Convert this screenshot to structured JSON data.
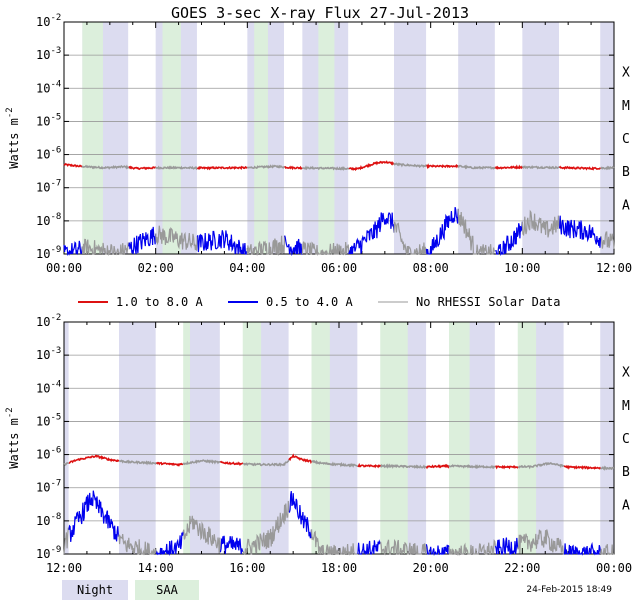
{
  "title": "GOES 3-sec X-ray Flux   27-Jul-2013",
  "colors": {
    "long_channel": "#dd1111",
    "short_channel": "#0000ee",
    "no_rhessi": "#999999",
    "night": "#dcdcf0",
    "saa": "#dcefdc",
    "grid": "#999999"
  },
  "y_axis": {
    "label_main": "Watts m",
    "label_sup": "-2",
    "ticks": [
      {
        "base": "10",
        "exp": "-2"
      },
      {
        "base": "10",
        "exp": "-3"
      },
      {
        "base": "10",
        "exp": "-4"
      },
      {
        "base": "10",
        "exp": "-5"
      },
      {
        "base": "10",
        "exp": "-6"
      },
      {
        "base": "10",
        "exp": "-7"
      },
      {
        "base": "10",
        "exp": "-8"
      },
      {
        "base": "10",
        "exp": "-9"
      }
    ]
  },
  "flare_classes": [
    "X",
    "M",
    "C",
    "B",
    "A"
  ],
  "legend": {
    "long": "1.0 to 8.0 A",
    "short": "0.5 to 4.0 A",
    "no_rhessi": "No RHESSI Solar Data",
    "night": "Night",
    "saa": "SAA"
  },
  "timestamp": "24-Feb-2015 18:49",
  "chart_data": [
    {
      "type": "line",
      "panel": "top",
      "x_unit": "hours UT",
      "xlim": [
        0,
        12
      ],
      "x_ticks": [
        "00:00",
        "02:00",
        "04:00",
        "06:00",
        "08:00",
        "10:00",
        "12:00"
      ],
      "yscale": "log",
      "ylim": [
        1e-09,
        0.01
      ],
      "ylabel": "Watts m-2",
      "night_intervals": [
        [
          0.4,
          1.4
        ],
        [
          2.0,
          2.9
        ],
        [
          4.0,
          4.8
        ],
        [
          5.2,
          6.2
        ],
        [
          7.2,
          7.9
        ],
        [
          8.6,
          9.4
        ],
        [
          10.0,
          10.8
        ],
        [
          11.7,
          12.0
        ]
      ],
      "saa_intervals": [
        [
          0.4,
          0.85
        ],
        [
          2.15,
          2.55
        ],
        [
          4.15,
          4.45
        ],
        [
          5.55,
          5.9
        ]
      ],
      "series": [
        {
          "name": "1.0 to 8.0 A",
          "x": [
            0.0,
            0.3,
            0.6,
            0.9,
            1.3,
            1.6,
            2.0,
            2.6,
            3.0,
            3.5,
            4.0,
            4.6,
            5.0,
            5.5,
            6.0,
            6.4,
            6.8,
            7.0,
            7.3,
            7.8,
            8.2,
            8.6,
            8.9,
            9.5,
            10.0,
            11.0,
            11.5,
            12.0
          ],
          "y": [
            5e-07,
            4.5e-07,
            4.2e-07,
            4e-07,
            4.3e-07,
            3.8e-07,
            4e-07,
            4e-07,
            3.9e-07,
            4e-07,
            4e-07,
            4.4e-07,
            4e-07,
            3.9e-07,
            3.8e-07,
            3.7e-07,
            5.5e-07,
            6e-07,
            5e-07,
            4.5e-07,
            4.4e-07,
            4.5e-07,
            4e-07,
            4e-07,
            4.2e-07,
            4e-07,
            3.8e-07,
            4e-07
          ]
        },
        {
          "name": "0.5 to 4.0 A",
          "x": [
            0.0,
            0.5,
            1.2,
            2.0,
            2.9,
            3.5,
            4.0,
            4.8,
            5.5,
            6.3,
            6.8,
            7.0,
            7.2,
            7.5,
            8.0,
            8.5,
            8.7,
            9.0,
            9.5,
            10.2,
            10.5,
            10.8,
            11.0,
            11.4,
            11.7,
            12.0
          ],
          "y": [
            1e-09,
            1.5e-09,
            1e-09,
            4e-09,
            2e-09,
            3e-09,
            1e-09,
            2e-09,
            1e-09,
            1.2e-09,
            5e-09,
            1.5e-08,
            8e-09,
            1e-09,
            1.2e-09,
            1.8e-08,
            1e-08,
            1e-09,
            1e-09,
            1.2e-08,
            5e-09,
            8e-09,
            6e-09,
            5e-09,
            3e-09,
            2e-09
          ]
        }
      ]
    },
    {
      "type": "line",
      "panel": "bottom",
      "x_unit": "hours UT",
      "xlim": [
        12,
        24
      ],
      "x_ticks": [
        "12:00",
        "14:00",
        "16:00",
        "18:00",
        "20:00",
        "22:00",
        "00:00"
      ],
      "yscale": "log",
      "ylim": [
        1e-09,
        0.01
      ],
      "ylabel": "Watts m-2",
      "night_intervals": [
        [
          12.0,
          12.1
        ],
        [
          13.2,
          14.0
        ],
        [
          14.7,
          15.4
        ],
        [
          16.2,
          16.9
        ],
        [
          17.7,
          18.4
        ],
        [
          19.2,
          19.9
        ],
        [
          20.7,
          21.4
        ],
        [
          22.2,
          22.9
        ],
        [
          23.7,
          24.0
        ]
      ],
      "saa_intervals": [
        [
          14.6,
          14.75
        ],
        [
          15.9,
          16.3
        ],
        [
          17.4,
          17.8
        ],
        [
          18.9,
          19.5
        ],
        [
          20.4,
          20.85
        ],
        [
          21.9,
          22.3
        ]
      ],
      "series": [
        {
          "name": "1.0 to 8.0 A",
          "x": [
            12.0,
            12.3,
            12.7,
            13.0,
            13.4,
            14.0,
            14.5,
            15.0,
            15.6,
            16.2,
            16.8,
            17.0,
            17.2,
            17.6,
            18.0,
            18.6,
            19.2,
            19.8,
            20.4,
            21.0,
            21.6,
            22.2,
            22.6,
            23.0,
            23.5,
            24.0
          ],
          "y": [
            5e-07,
            7e-07,
            9e-07,
            7e-07,
            6e-07,
            5.5e-07,
            5e-07,
            6.5e-07,
            5.5e-07,
            5e-07,
            5e-07,
            9e-07,
            7e-07,
            5.5e-07,
            5e-07,
            4.5e-07,
            4.5e-07,
            4.2e-07,
            4.5e-07,
            4.3e-07,
            4.2e-07,
            4.3e-07,
            5.5e-07,
            4.2e-07,
            4e-07,
            3.8e-07
          ]
        },
        {
          "name": "0.5 to 4.0 A",
          "x": [
            12.0,
            12.3,
            12.6,
            12.8,
            13.0,
            13.3,
            14.0,
            14.5,
            14.8,
            15.0,
            15.4,
            16.0,
            16.5,
            17.0,
            17.2,
            17.4,
            17.6,
            18.0,
            19.0,
            20.0,
            21.0,
            22.0,
            22.5,
            23.0,
            23.5,
            24.0
          ],
          "y": [
            2e-09,
            1e-08,
            5e-08,
            2e-08,
            8e-09,
            2e-09,
            1e-09,
            1.5e-09,
            1e-08,
            5e-09,
            2e-09,
            1.5e-09,
            3e-09,
            5e-08,
            1e-08,
            5e-09,
            1e-09,
            1e-09,
            1.5e-09,
            1e-09,
            1e-09,
            2e-09,
            3e-09,
            1e-09,
            1e-09,
            1e-09
          ]
        }
      ]
    }
  ]
}
